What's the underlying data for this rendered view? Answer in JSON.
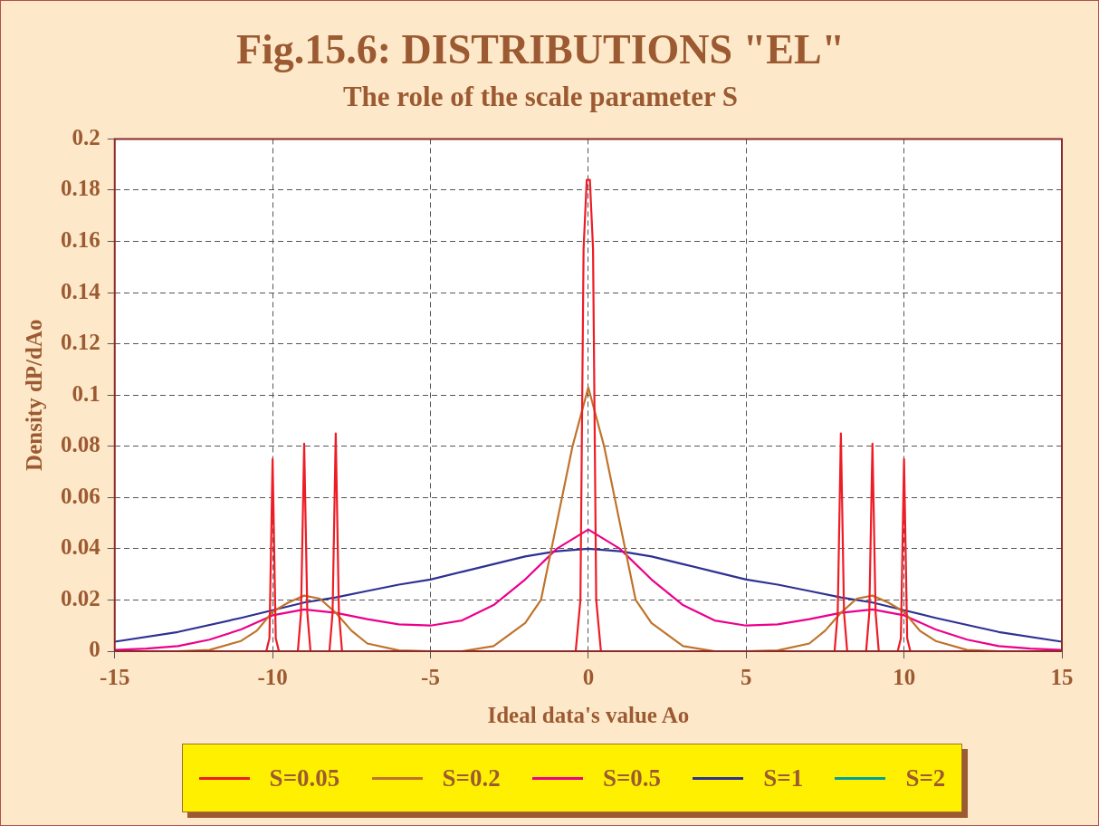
{
  "chart_data": {
    "type": "line",
    "title": "Fig.15.6: DISTRIBUTIONS \"EL\"",
    "subtitle": "The role of the scale parameter S",
    "xlabel": "Ideal data's value Ao",
    "ylabel": "Density dP/dAo",
    "xlim": [
      -15,
      15
    ],
    "xticks": [
      -15,
      -10,
      -5,
      0,
      5,
      10,
      15
    ],
    "ylim": [
      0,
      0.2
    ],
    "yticks": [
      0,
      0.02,
      0.04,
      0.06,
      0.08,
      0.1,
      0.12,
      0.14,
      0.16,
      0.18,
      0.2
    ],
    "grid": true,
    "legend": "bottom",
    "marker": "none",
    "line_style": "solid",
    "series": [
      {
        "name": "S=0.05",
        "color": "#ee1c25",
        "x": [
          -10.2,
          -10.1,
          -10,
          -9.9,
          -9.8,
          -9.2,
          -9.1,
          -9,
          -8.9,
          -8.8,
          -8.2,
          -8.1,
          -8,
          -7.9,
          -7.8,
          -0.4,
          -0.25,
          -0.15,
          -0.05,
          0.05,
          0.15,
          0.25,
          0.4,
          7.8,
          7.9,
          8,
          8.1,
          8.2,
          8.8,
          8.9,
          9,
          9.1,
          9.2,
          9.8,
          9.9,
          10,
          10.1,
          10.2
        ],
        "values": [
          0,
          0.005,
          0.075,
          0.005,
          0,
          0,
          0.015,
          0.081,
          0.015,
          0,
          0,
          0.015,
          0.085,
          0.015,
          0,
          0,
          0.02,
          0.157,
          0.184,
          0.184,
          0.157,
          0.02,
          0,
          0,
          0.015,
          0.085,
          0.015,
          0,
          0,
          0.015,
          0.081,
          0.015,
          0,
          0,
          0.005,
          0.075,
          0.005,
          0
        ]
      },
      {
        "name": "S=0.2",
        "color": "#c0732a",
        "x": [
          -15,
          -13,
          -12,
          -11,
          -10.5,
          -10,
          -9.5,
          -9,
          -8.5,
          -8,
          -7.5,
          -7,
          -6,
          -5,
          -4,
          -3,
          -2,
          -1.5,
          -1,
          -0.5,
          0,
          0.5,
          1,
          1.5,
          2,
          3,
          4,
          5,
          6,
          7,
          7.5,
          8,
          8.5,
          9,
          9.5,
          10,
          10.5,
          11,
          12,
          13
        ],
        "values": [
          0,
          0,
          0.0005,
          0.004,
          0.008,
          0.0154,
          0.019,
          0.0217,
          0.0205,
          0.015,
          0.008,
          0.003,
          0.0003,
          0,
          0,
          0.002,
          0.011,
          0.02,
          0.05,
          0.08,
          0.103,
          0.08,
          0.05,
          0.02,
          0.011,
          0.002,
          0,
          0,
          0.0003,
          0.003,
          0.008,
          0.015,
          0.0205,
          0.0217,
          0.019,
          0.0154,
          0.008,
          0.004,
          0.0005,
          0
        ]
      },
      {
        "name": "S=0.5",
        "color": "#ec008c",
        "x": [
          -15,
          -14,
          -13,
          -12,
          -11,
          -10,
          -9,
          -8,
          -7,
          -6,
          -5,
          -4,
          -3,
          -2,
          -1,
          0,
          1,
          2,
          3,
          4,
          5,
          6,
          7,
          8,
          9,
          10,
          11,
          12,
          13,
          14,
          15
        ],
        "values": [
          0.0005,
          0.001,
          0.002,
          0.0045,
          0.0085,
          0.014,
          0.0163,
          0.015,
          0.0125,
          0.0105,
          0.01,
          0.012,
          0.018,
          0.028,
          0.04,
          0.0475,
          0.04,
          0.028,
          0.018,
          0.012,
          0.01,
          0.0105,
          0.0125,
          0.015,
          0.0163,
          0.014,
          0.0085,
          0.0045,
          0.002,
          0.001,
          0.0005
        ]
      },
      {
        "name": "S=1",
        "color": "#2e3192",
        "x": [
          -15,
          -13,
          -11,
          -10,
          -9,
          -8,
          -7,
          -6,
          -5,
          -4,
          -3,
          -2,
          -1,
          0,
          1,
          2,
          3,
          4,
          5,
          6,
          7,
          8,
          9,
          10,
          11,
          13,
          15
        ],
        "values": [
          0.0037,
          0.0075,
          0.013,
          0.016,
          0.019,
          0.021,
          0.0235,
          0.026,
          0.028,
          0.031,
          0.034,
          0.037,
          0.039,
          0.04,
          0.039,
          0.037,
          0.034,
          0.031,
          0.028,
          0.026,
          0.0235,
          0.021,
          0.019,
          0.016,
          0.013,
          0.0075,
          0.0037
        ]
      },
      {
        "name": "S=2",
        "color": "#00a0a0"
      }
    ]
  }
}
